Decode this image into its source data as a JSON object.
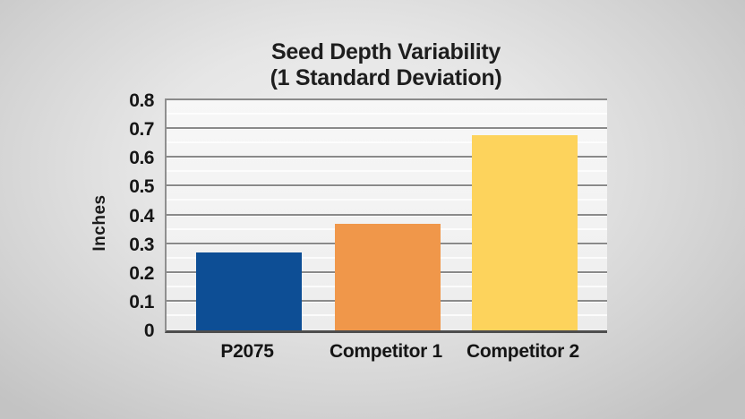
{
  "chart_data": {
    "type": "bar",
    "title_line1": "Seed Depth Variability",
    "title_line2": "(1 Standard Deviation)",
    "ylabel": "Inches",
    "categories": [
      "P2075",
      "Competitor 1",
      "Competitor 2"
    ],
    "values": [
      0.27,
      0.37,
      0.68
    ],
    "bar_colors": [
      "#0d4e95",
      "#f0974a",
      "#fdd35c"
    ],
    "ylim": [
      0,
      0.8
    ],
    "ytick_step": 0.1,
    "ytick_labels": [
      "0.8",
      "0.7",
      "0.6",
      "0.5",
      "0.4",
      "0.3",
      "0.2",
      "0.1",
      "0"
    ],
    "grid": "horizontal-major-and-minor",
    "legend": "none",
    "colors": {
      "gridline": "#8a8a8a",
      "baseline": "#4d4d4d",
      "axis_line": "#8f8f8f",
      "text": "#1e1e1e",
      "plot_background": "#f4f4f4",
      "page_background": "#d0d0d0"
    }
  }
}
